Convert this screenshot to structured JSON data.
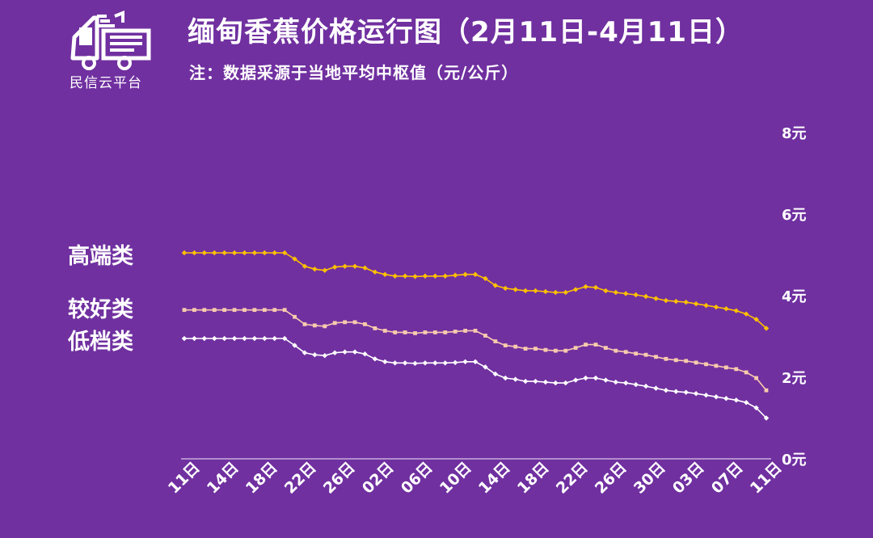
{
  "brand": {
    "name": "民信云平台"
  },
  "header": {
    "title": "缅甸香蕉价格运行图（2月11日-4月11日）",
    "subtitle": "注：数据采源于当地平均中枢值（元/公斤）"
  },
  "colors": {
    "background": "#7030a0",
    "high": "#ffc000",
    "mid": "#f8cbad",
    "low": "#ffffff",
    "axis": "#d9c7ea"
  },
  "chart_data": {
    "type": "line",
    "title": "缅甸香蕉价格运行图（2月11日-4月11日）",
    "ylim": [
      0,
      8
    ],
    "yticks": [
      "0元",
      "2元",
      "4元",
      "6元",
      "8元"
    ],
    "ytick_values": [
      0,
      2,
      4,
      6,
      8
    ],
    "x_tick_labels": [
      "11日",
      "14日",
      "18日",
      "22日",
      "26日",
      "02日",
      "06日",
      "10日",
      "14日",
      "18日",
      "22日",
      "26日",
      "30日",
      "03日",
      "07日",
      "11日"
    ],
    "grid": false,
    "series": [
      {
        "name": "高端类",
        "color": "#ffc000",
        "values": [
          5.05,
          5.05,
          5.05,
          5.05,
          5.05,
          5.05,
          5.05,
          5.05,
          5.05,
          5.05,
          5.05,
          4.9,
          4.72,
          4.65,
          4.62,
          4.7,
          4.72,
          4.72,
          4.68,
          4.58,
          4.52,
          4.48,
          4.48,
          4.47,
          4.48,
          4.48,
          4.48,
          4.5,
          4.52,
          4.52,
          4.42,
          4.25,
          4.18,
          4.15,
          4.12,
          4.12,
          4.1,
          4.08,
          4.08,
          4.15,
          4.22,
          4.2,
          4.12,
          4.08,
          4.05,
          4.02,
          3.98,
          3.93,
          3.88,
          3.86,
          3.84,
          3.8,
          3.76,
          3.72,
          3.68,
          3.63,
          3.55,
          3.42,
          3.2
        ]
      },
      {
        "name": "较好类",
        "color": "#f8cbad",
        "values": [
          3.65,
          3.65,
          3.65,
          3.65,
          3.65,
          3.65,
          3.65,
          3.65,
          3.65,
          3.65,
          3.65,
          3.48,
          3.3,
          3.27,
          3.25,
          3.33,
          3.35,
          3.35,
          3.3,
          3.2,
          3.14,
          3.1,
          3.1,
          3.08,
          3.1,
          3.1,
          3.1,
          3.12,
          3.14,
          3.14,
          3.02,
          2.88,
          2.78,
          2.75,
          2.7,
          2.7,
          2.67,
          2.65,
          2.65,
          2.72,
          2.8,
          2.8,
          2.72,
          2.65,
          2.62,
          2.58,
          2.55,
          2.5,
          2.45,
          2.42,
          2.4,
          2.36,
          2.32,
          2.28,
          2.24,
          2.2,
          2.12,
          1.98,
          1.68
        ]
      },
      {
        "name": "低档类",
        "color": "#ffffff",
        "values": [
          2.95,
          2.95,
          2.95,
          2.95,
          2.95,
          2.95,
          2.95,
          2.95,
          2.95,
          2.95,
          2.95,
          2.78,
          2.6,
          2.55,
          2.53,
          2.6,
          2.62,
          2.62,
          2.57,
          2.45,
          2.38,
          2.35,
          2.35,
          2.34,
          2.35,
          2.35,
          2.35,
          2.36,
          2.38,
          2.38,
          2.25,
          2.08,
          1.98,
          1.95,
          1.9,
          1.9,
          1.88,
          1.86,
          1.86,
          1.93,
          1.98,
          1.98,
          1.93,
          1.88,
          1.86,
          1.82,
          1.78,
          1.73,
          1.68,
          1.65,
          1.63,
          1.6,
          1.56,
          1.52,
          1.48,
          1.44,
          1.38,
          1.25,
          1.0
        ]
      }
    ]
  }
}
